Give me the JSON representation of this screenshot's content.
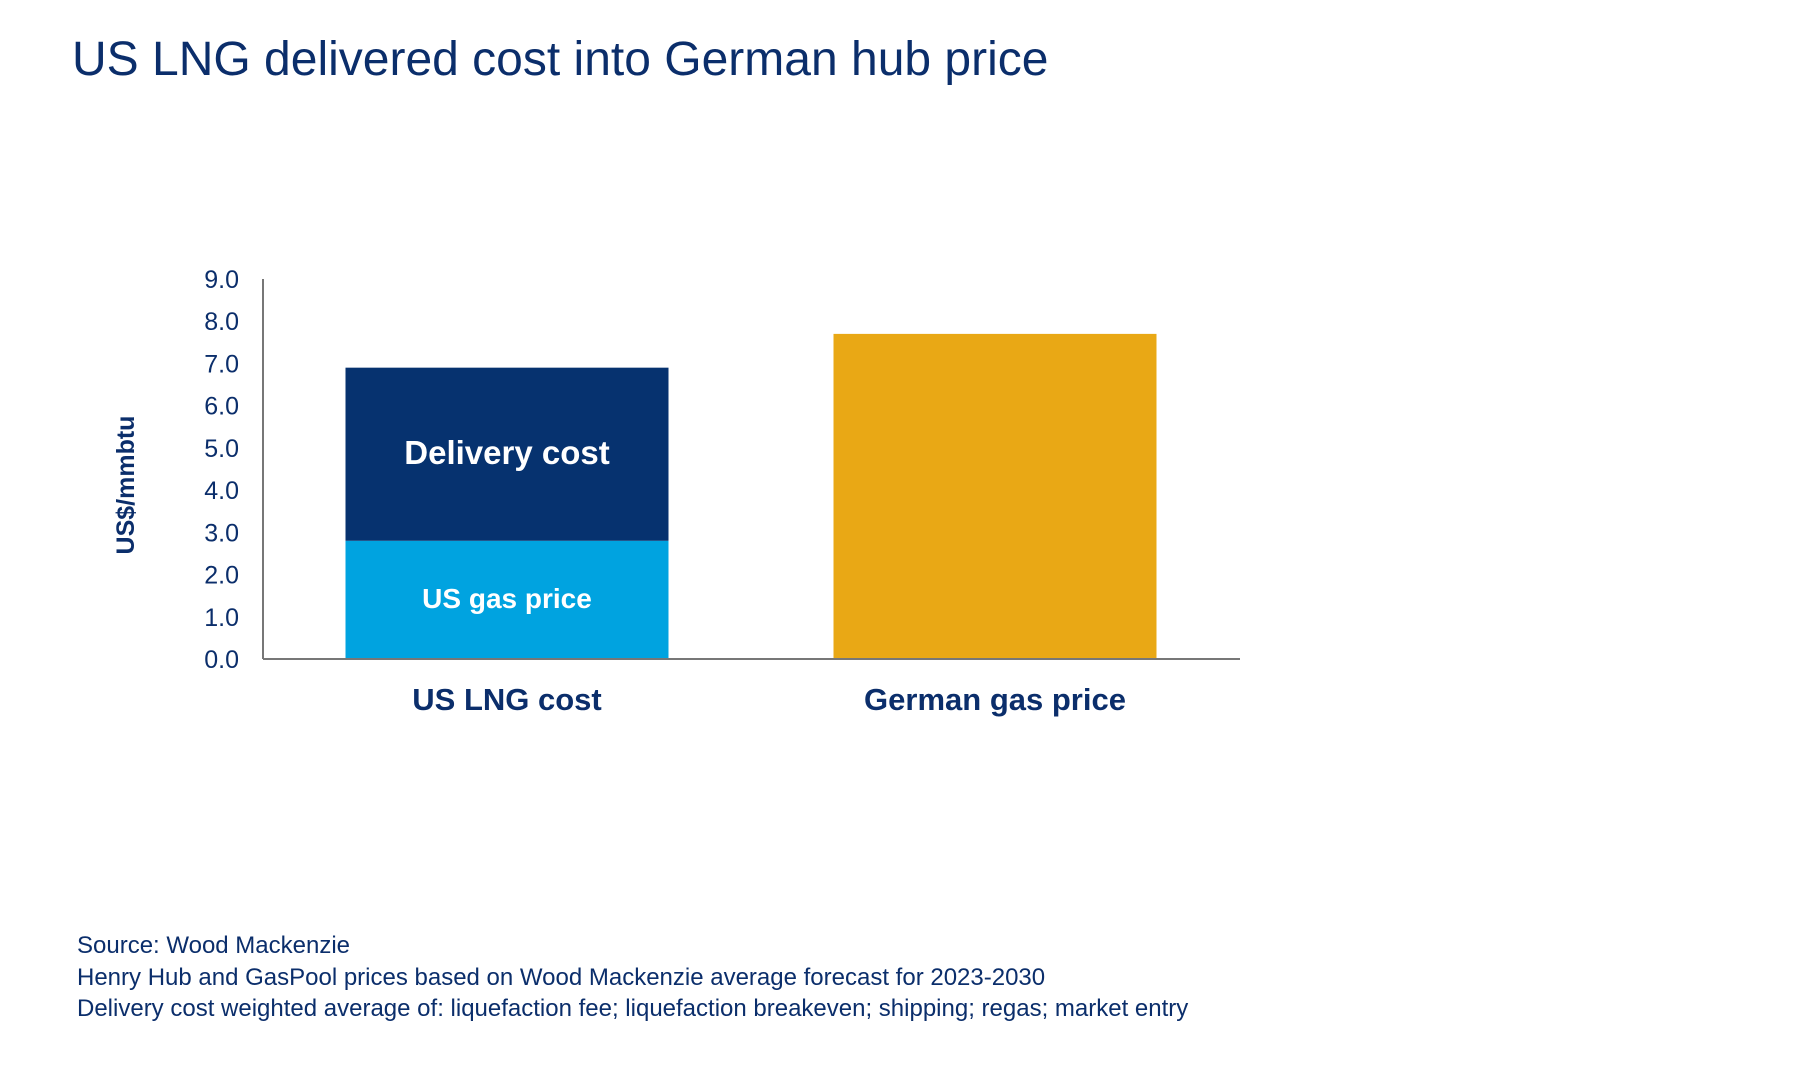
{
  "title": "US LNG delivered cost into German hub price",
  "chart_data": {
    "type": "bar",
    "stacked": true,
    "title": "US LNG delivered cost into German hub price",
    "ylabel": "US$/mmbtu",
    "xlabel": "",
    "ylim": [
      0,
      9
    ],
    "yticks": [
      "0.0",
      "1.0",
      "2.0",
      "3.0",
      "4.0",
      "5.0",
      "6.0",
      "7.0",
      "8.0",
      "9.0"
    ],
    "grid": false,
    "categories": [
      "US LNG cost",
      "German gas price"
    ],
    "series": [
      {
        "name": "US gas price",
        "values": [
          2.8,
          null
        ],
        "color": "#00a3e0",
        "label_color": "#ffffff"
      },
      {
        "name": "Delivery cost",
        "values": [
          4.1,
          null
        ],
        "color": "#06326f",
        "label_color": "#ffffff"
      },
      {
        "name": "",
        "values": [
          null,
          7.7
        ],
        "color": "#e9a815"
      }
    ]
  },
  "notes": [
    "Source: Wood Mackenzie",
    "Henry Hub and GasPool prices based on Wood Mackenzie average forecast for 2023-2030",
    "Delivery cost weighted average of: liquefaction fee; liquefaction breakeven; shipping; regas; market entry"
  ]
}
